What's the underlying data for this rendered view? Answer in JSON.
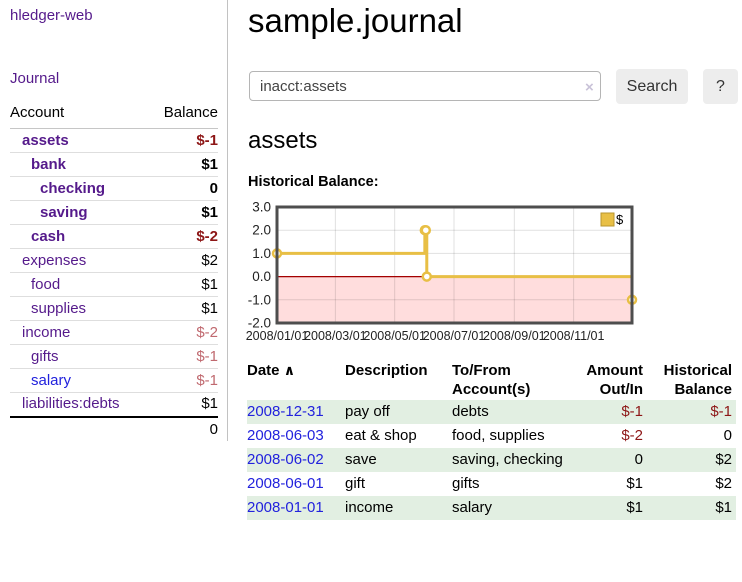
{
  "app_title": "hledger-web",
  "sidebar": {
    "journal_link": "Journal",
    "accounts": {
      "col_account": "Account",
      "col_balance": "Balance",
      "rows": [
        {
          "name": "assets",
          "balance": "$-1",
          "indent": 1,
          "bold": true,
          "negative": "strong",
          "link": "visited"
        },
        {
          "name": "bank",
          "balance": "$1",
          "indent": 2,
          "bold": true,
          "negative": "none",
          "link": "visited"
        },
        {
          "name": "checking",
          "balance": "0",
          "indent": 3,
          "bold": true,
          "negative": "none",
          "link": "visited"
        },
        {
          "name": "saving",
          "balance": "$1",
          "indent": 3,
          "bold": true,
          "negative": "none",
          "link": "visited"
        },
        {
          "name": "cash",
          "balance": "$-2",
          "indent": 2,
          "bold": true,
          "negative": "strong",
          "link": "visited"
        },
        {
          "name": "expenses",
          "balance": "$2",
          "indent": 1,
          "bold": false,
          "negative": "none",
          "link": "visited"
        },
        {
          "name": "food",
          "balance": "$1",
          "indent": 2,
          "bold": false,
          "negative": "none",
          "link": "visited"
        },
        {
          "name": "supplies",
          "balance": "$1",
          "indent": 2,
          "bold": false,
          "negative": "none",
          "link": "visited"
        },
        {
          "name": "income",
          "balance": "$-2",
          "indent": 1,
          "bold": false,
          "negative": "soft",
          "link": "visited"
        },
        {
          "name": "gifts",
          "balance": "$-1",
          "indent": 2,
          "bold": false,
          "negative": "soft",
          "link": "visited"
        },
        {
          "name": "salary",
          "balance": "$-1",
          "indent": 2,
          "bold": false,
          "negative": "soft",
          "link": "unvisited"
        },
        {
          "name": "liabilities:debts",
          "balance": "$1",
          "indent": 1,
          "bold": false,
          "negative": "none",
          "link": "visited"
        }
      ],
      "total": "0"
    }
  },
  "main": {
    "title": "sample.journal",
    "search": {
      "value": "inacct:assets",
      "clear_icon": "×",
      "search_button": "Search",
      "help_button": "?"
    },
    "section_heading": "assets",
    "chart_heading": "Historical Balance:",
    "register": {
      "headers": {
        "date": "Date",
        "description": "Description",
        "tofrom": "To/From Account(s)",
        "amount": "Amount Out/In",
        "balance": "Historical Balance"
      },
      "sort_icon": "∧",
      "rows": [
        {
          "date": "2008-12-31",
          "description": "pay off",
          "accounts": "debts",
          "amount": "$-1",
          "amount_negative": true,
          "balance": "$-1",
          "balance_negative": true
        },
        {
          "date": "2008-06-03",
          "description": "eat & shop",
          "accounts": "food, supplies",
          "amount": "$-2",
          "amount_negative": true,
          "balance": "0",
          "balance_negative": false
        },
        {
          "date": "2008-06-02",
          "description": "save",
          "accounts": "saving, checking",
          "amount": "0",
          "amount_negative": false,
          "balance": "$2",
          "balance_negative": false
        },
        {
          "date": "2008-06-01",
          "description": "gift",
          "accounts": "gifts",
          "amount": "$1",
          "amount_negative": false,
          "balance": "$2",
          "balance_negative": false
        },
        {
          "date": "2008-01-01",
          "description": "income",
          "accounts": "salary",
          "amount": "$1",
          "amount_negative": false,
          "balance": "$1",
          "balance_negative": false
        }
      ]
    }
  },
  "chart_data": {
    "type": "line",
    "title": "Historical Balance",
    "series": [
      {
        "name": "$",
        "color": "#e8bf45",
        "step": true,
        "points": [
          [
            "2008-01-01",
            1
          ],
          [
            "2008-06-01",
            2
          ],
          [
            "2008-06-02",
            2
          ],
          [
            "2008-06-03",
            0
          ],
          [
            "2008-12-31",
            -1
          ]
        ]
      }
    ],
    "x_ticks": [
      "2008/01/01",
      "2008/03/01",
      "2008/05/01",
      "2008/07/01",
      "2008/09/01",
      "2008/11/01"
    ],
    "y_ticks": [
      3.0,
      2.0,
      1.0,
      0.0,
      -1.0,
      -2.0
    ],
    "xlim": [
      "2008-01-01",
      "2008-12-31"
    ],
    "ylim": [
      -2,
      3
    ],
    "legend": {
      "label": "$",
      "position": "top-right"
    },
    "grid": true,
    "negative_region_color": "#ffdddd",
    "zero_line_color": "#a40000"
  },
  "colors": {
    "link_visited": "#551a8b",
    "link_unvisited": "#2222dd",
    "negative_strong": "#8d1616",
    "negative_soft": "#c0696f",
    "row_stripe": "#e2efe2",
    "chart_gold": "#e8bf45",
    "button_bg": "#ededed"
  }
}
